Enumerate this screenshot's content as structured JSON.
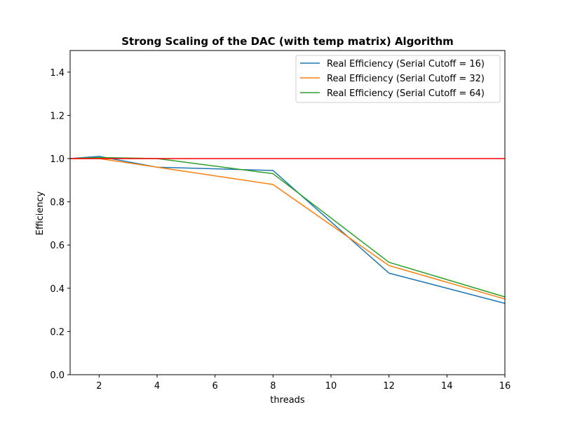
{
  "chart_data": {
    "type": "line",
    "title": "Strong Scaling of the DAC (with temp matrix) Algorithm",
    "xlabel": "threads",
    "ylabel": "Efficiency",
    "xlim": [
      1,
      16
    ],
    "ylim": [
      0.0,
      1.5
    ],
    "xticks": [
      2,
      4,
      6,
      8,
      10,
      12,
      14,
      16
    ],
    "yticks": [
      0.0,
      0.2,
      0.4,
      0.6,
      0.8,
      1.0,
      1.2,
      1.4
    ],
    "ytick_labels": [
      "0.0",
      "0.2",
      "0.4",
      "0.6",
      "0.8",
      "1.0",
      "1.2",
      "1.4"
    ],
    "grid": false,
    "legend_position": "top-right",
    "x": [
      1,
      2,
      4,
      8,
      12,
      16
    ],
    "series": [
      {
        "name": "Real Efficiency (Serial Cutoff = 16)",
        "color": "#1f77b4",
        "values": [
          1.0,
          1.01,
          0.96,
          0.945,
          0.47,
          0.33
        ]
      },
      {
        "name": "Real Efficiency (Serial Cutoff = 32)",
        "color": "#ff7f0e",
        "values": [
          1.0,
          1.0,
          0.96,
          0.88,
          0.505,
          0.35
        ]
      },
      {
        "name": "Real Efficiency (Serial Cutoff = 64)",
        "color": "#2ca02c",
        "values": [
          1.0,
          1.005,
          1.0,
          0.93,
          0.52,
          0.36
        ]
      }
    ],
    "reference_line": {
      "y": 1.0,
      "color": "#ff0000"
    }
  }
}
